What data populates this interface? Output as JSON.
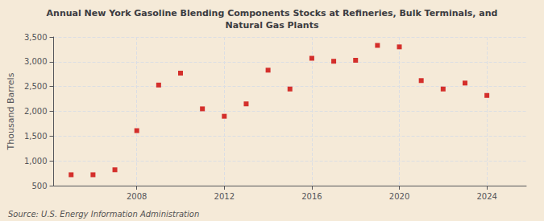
{
  "chart_data": {
    "type": "scatter",
    "title": "Annual New York Gasoline Blending Components Stocks at Refineries, Bulk Terminals, and\nNatural Gas Plants",
    "ylabel": "Thousand Barrels",
    "annotations": [
      "Source: U.S. Energy Information Administration"
    ],
    "x": [
      2005,
      2006,
      2007,
      2008,
      2009,
      2010,
      2011,
      2012,
      2013,
      2014,
      2015,
      2016,
      2017,
      2018,
      2019,
      2020,
      2021,
      2022,
      2023,
      2024
    ],
    "values": [
      720,
      720,
      820,
      1610,
      2530,
      2770,
      2050,
      1900,
      2150,
      2830,
      2450,
      3070,
      3010,
      3030,
      3330,
      3300,
      2620,
      2450,
      2570,
      2320
    ],
    "color": "#cc0000",
    "marker": "square",
    "xlim": [
      2004.2,
      2025.8
    ],
    "xticks": [
      2008,
      2012,
      2016,
      2020,
      2024
    ],
    "ylim": [
      500,
      3500
    ],
    "yticks": [
      500,
      {
        "value": 1000,
        "label": "1,000"
      },
      {
        "value": 1500,
        "label": "1,500"
      },
      {
        "value": 2000,
        "label": "2,000"
      },
      {
        "value": 2500,
        "label": "2,500"
      },
      {
        "value": 3000,
        "label": "3,000"
      },
      {
        "value": 3500,
        "label": "3,500"
      }
    ],
    "grid": true
  }
}
